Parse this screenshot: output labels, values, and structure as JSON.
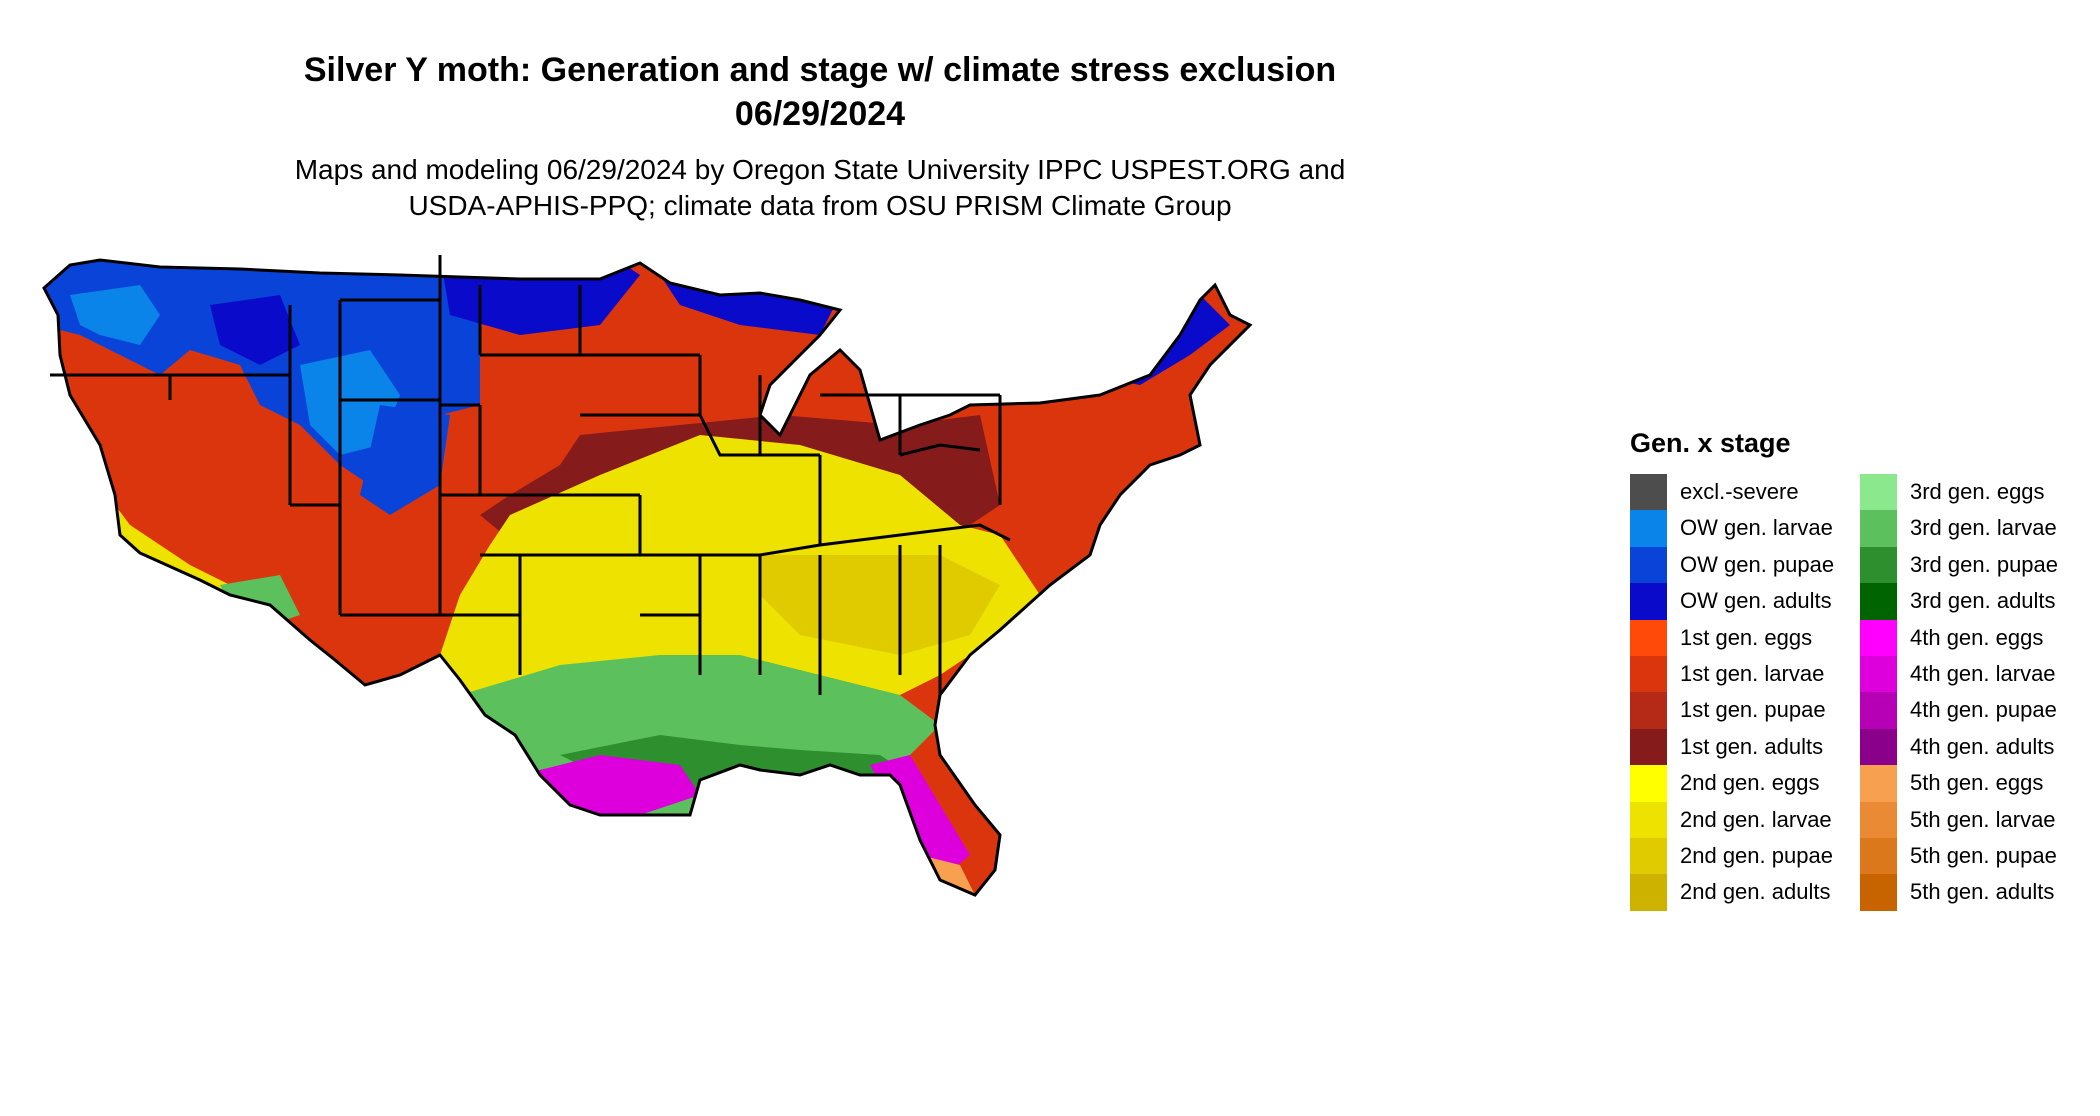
{
  "title_line1": "Silver Y moth: Generation and stage w/ climate stress exclusion",
  "title_line2": "06/29/2024",
  "subtitle_line1": "Maps and modeling 06/29/2024 by Oregon State University IPPC USPEST.ORG and",
  "subtitle_line2": "USDA-APHIS-PPQ; climate data from OSU PRISM Climate Group",
  "legend": {
    "title": "Gen. x stage",
    "items": [
      {
        "label": "excl.-severe",
        "color": "#4d4d4d"
      },
      {
        "label": "OW gen. larvae",
        "color": "#0a84e8"
      },
      {
        "label": "OW gen. pupae",
        "color": "#0a43d8"
      },
      {
        "label": "OW gen. adults",
        "color": "#0a0acb"
      },
      {
        "label": "1st gen. eggs",
        "color": "#ff4a0a"
      },
      {
        "label": "1st gen. larvae",
        "color": "#db350e"
      },
      {
        "label": "1st gen. pupae",
        "color": "#b52a17"
      },
      {
        "label": "1st gen. adults",
        "color": "#861b1b"
      },
      {
        "label": "2nd gen. eggs",
        "color": "#ffff00"
      },
      {
        "label": "2nd gen. larvae",
        "color": "#eee300"
      },
      {
        "label": "2nd gen. pupae",
        "color": "#dfcb00"
      },
      {
        "label": "2nd gen. adults",
        "color": "#ceb200"
      },
      {
        "label": "3rd gen. eggs",
        "color": "#8ce88c"
      },
      {
        "label": "3rd gen. larvae",
        "color": "#5cc05c"
      },
      {
        "label": "3rd gen. pupae",
        "color": "#2e8f2e"
      },
      {
        "label": "3rd gen. adults",
        "color": "#006400"
      },
      {
        "label": "4th gen. eggs",
        "color": "#ff00ff"
      },
      {
        "label": "4th gen. larvae",
        "color": "#dd00dd"
      },
      {
        "label": "4th gen. pupae",
        "color": "#b500b5"
      },
      {
        "label": "4th gen. adults",
        "color": "#8b008b"
      },
      {
        "label": "5th gen. eggs",
        "color": "#f6a050"
      },
      {
        "label": "5th gen. larvae",
        "color": "#ea8a34"
      },
      {
        "label": "5th gen. pupae",
        "color": "#dc781c"
      },
      {
        "label": "5th gen. adults",
        "color": "#c86400"
      }
    ]
  },
  "map": {
    "state_border_color": "#000000"
  }
}
